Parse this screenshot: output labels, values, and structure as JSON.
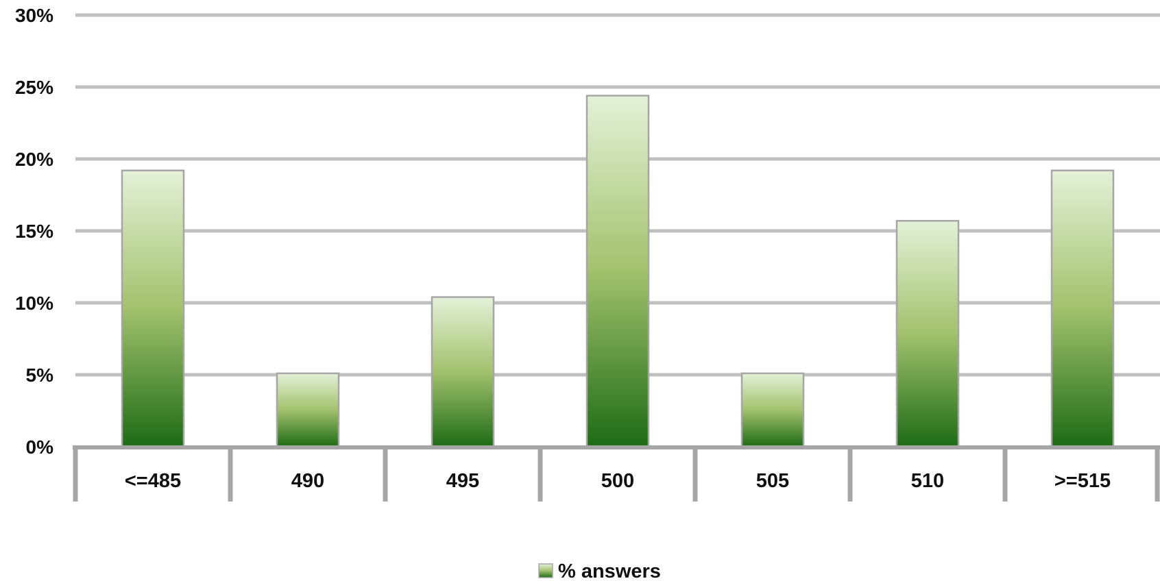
{
  "chart_data": {
    "type": "bar",
    "categories": [
      "<=485",
      "490",
      "495",
      "500",
      "505",
      "510",
      ">=515"
    ],
    "series": [
      {
        "name": "% answers",
        "values": [
          19.2,
          5.1,
          10.4,
          24.4,
          5.1,
          15.7,
          19.2
        ]
      }
    ],
    "y_ticks": [
      "0%",
      "5%",
      "10%",
      "15%",
      "20%",
      "25%",
      "30%"
    ],
    "ylim": [
      0,
      30
    ],
    "grid": true,
    "legend": {
      "position": "bottom",
      "label": "% answers"
    },
    "colors": {
      "bar_top": "#e4f1d8",
      "bar_mid": "#a2c16d",
      "bar_bottom": "#1e6b16",
      "bar_stroke": "#a6a6a6",
      "grid": "#c0c0c0",
      "axis": "#a6a6a6"
    }
  }
}
